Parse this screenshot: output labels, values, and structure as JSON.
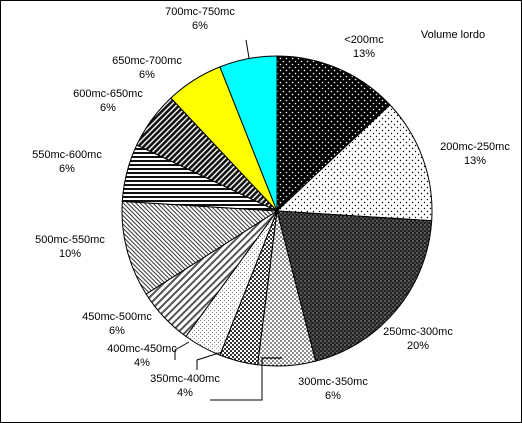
{
  "chart_data": {
    "type": "pie",
    "title": "Volume lordo",
    "slices": [
      {
        "label": "<200mc",
        "value": 13,
        "pct_text": "13%",
        "color": "#000000",
        "pattern": "black-dots"
      },
      {
        "label": "200mc-250mc",
        "value": 13,
        "pct_text": "13%",
        "color": "#ffffff",
        "pattern": "sparse-dots"
      },
      {
        "label": "250mc-300mc",
        "value": 20,
        "pct_text": "20%",
        "color": "#2a2a2a",
        "pattern": "dark-dots"
      },
      {
        "label": "300mc-350mc",
        "value": 6,
        "pct_text": "6%",
        "color": "#ffffff",
        "pattern": "dense-dots"
      },
      {
        "label": "350mc-400mc",
        "value": 4,
        "pct_text": "4%",
        "color": "#555555",
        "pattern": "checker"
      },
      {
        "label": "400mc-450mc",
        "value": 4,
        "pct_text": "4%",
        "color": "#ffffff",
        "pattern": "light-grid"
      },
      {
        "label": "450mc-500mc",
        "value": 6,
        "pct_text": "6%",
        "color": "#ffffff",
        "pattern": "diagonal-wide"
      },
      {
        "label": "500mc-550mc",
        "value": 10,
        "pct_text": "10%",
        "color": "#ffffff",
        "pattern": "diagonal-fine"
      },
      {
        "label": "550mc-600mc",
        "value": 6,
        "pct_text": "6%",
        "color": "#444444",
        "pattern": "horizontal"
      },
      {
        "label": "600mc-650mc",
        "value": 6,
        "pct_text": "6%",
        "color": "#666666",
        "pattern": "diagonal-dark"
      },
      {
        "label": "650mc-700mc",
        "value": 6,
        "pct_text": "6%",
        "color": "#ffff00",
        "pattern": "solid"
      },
      {
        "label": "700mc-750mc",
        "value": 6,
        "pct_text": "6%",
        "color": "#00ffff",
        "pattern": "solid"
      }
    ]
  }
}
